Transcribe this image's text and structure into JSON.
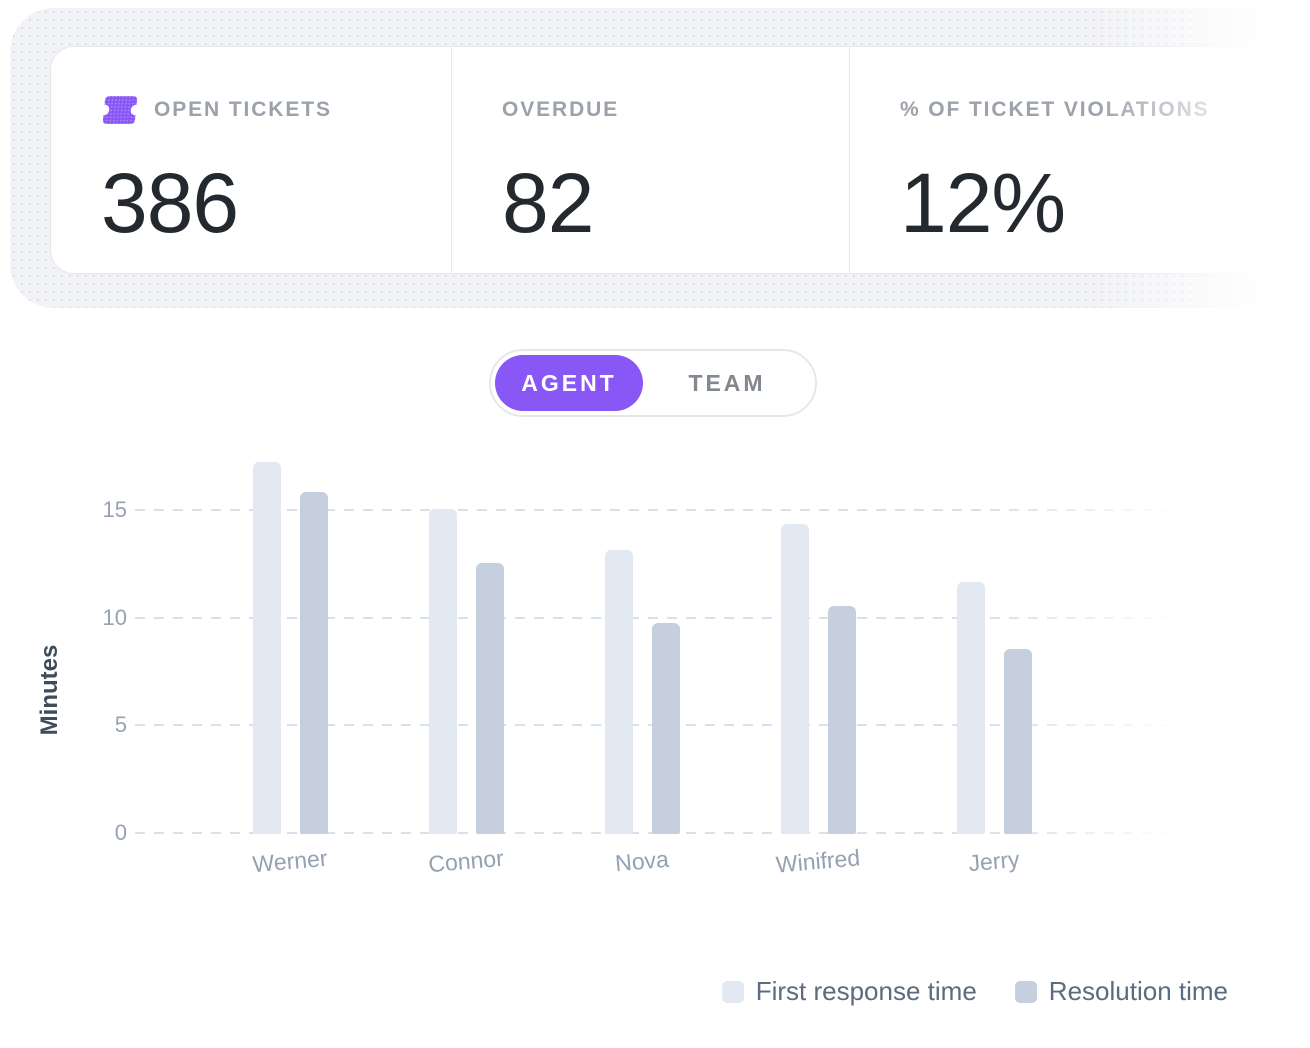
{
  "stats_panel": {
    "cards": [
      {
        "icon": "ticket-icon",
        "label": "OPEN TICKETS",
        "value": "386"
      },
      {
        "label": "OVERDUE",
        "value": "82"
      },
      {
        "label": "% OF TICKET VIOLATIONS",
        "value": "12%"
      }
    ]
  },
  "view_toggle": {
    "options": [
      {
        "label": "AGENT",
        "selected": true
      },
      {
        "label": "TEAM",
        "selected": false
      }
    ]
  },
  "chart_data": {
    "type": "bar",
    "categories": [
      "Werner",
      "Connor",
      "Nova",
      "Winifred",
      "Jerry"
    ],
    "series": [
      {
        "name": "First response time",
        "color": "#E3E9F2",
        "values": [
          17.3,
          15.1,
          13.2,
          14.4,
          11.7
        ]
      },
      {
        "name": "Resolution time",
        "color": "#C5CFDD",
        "values": [
          15.9,
          12.6,
          9.8,
          10.6,
          8.6
        ]
      }
    ],
    "ylabel": "Minutes",
    "yticks": [
      0,
      5,
      10,
      15
    ],
    "ylim": [
      0,
      18.3
    ],
    "grid": "horizontal-dashed",
    "legend_position": "bottom-right"
  },
  "colors": {
    "accent_purple": "#8857F6",
    "bar_first_response": "#E3E9F2",
    "bar_resolution": "#C5CFDD",
    "gridline": "#D8E0EA",
    "panel_bg": "#F2F3F6"
  }
}
